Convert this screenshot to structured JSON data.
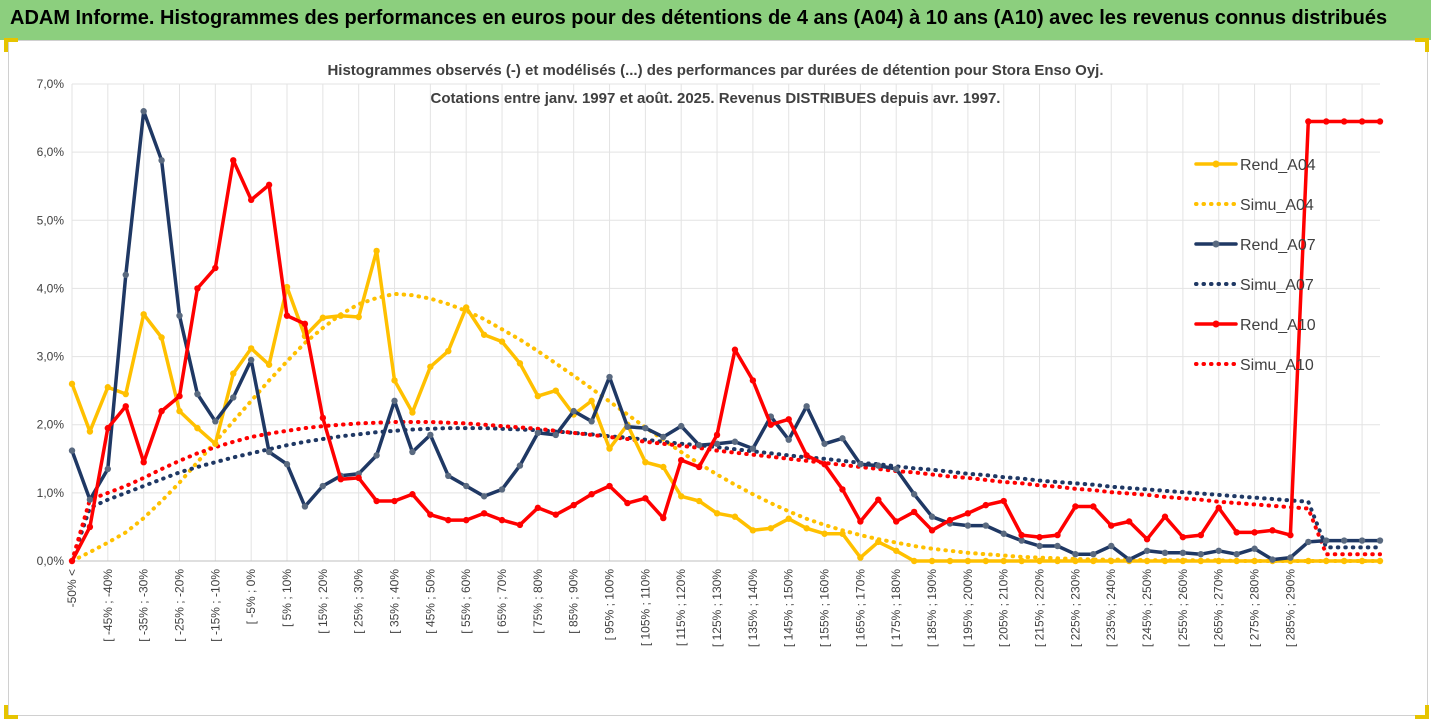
{
  "banner": {
    "title": "ADAM Informe. Histogrammes des performances en euros pour des détentions de 4 ans (A04) à 10 ans (A10) avec les revenus connus distribués"
  },
  "colors": {
    "banner_bg": "#8ccf7e",
    "frame_corner": "#e6c400",
    "a04": "#ffc000",
    "a07": "#1f3864",
    "a10": "#ff0000"
  },
  "chart_data": {
    "type": "line",
    "title": "Histogrammes observés (-) et modélisés (...) des performances par durées de détention pour Stora Enso Oyj.",
    "subtitle": "Cotations entre janv. 1997 et août. 2025. Revenus DISTRIBUES depuis avr.  1997.",
    "ylim": [
      0,
      7
    ],
    "y_tick_labels": [
      "0,0%",
      "1,0%",
      "2,0%",
      "3,0%",
      "4,0%",
      "5,0%",
      "6,0%",
      "7,0%"
    ],
    "grid": true,
    "legend_position": "right",
    "x_tick_labels": [
      "-50% <",
      "[ -45% ; -40%",
      "[ -35% ; -30%",
      "[ -25% ; -20%",
      "[ -15% ; -10%",
      "[ -5% ; 0%",
      "[ 5% ; 10%",
      "[ 15% ; 20%",
      "[ 25% ; 30%",
      "[ 35% ; 40%",
      "[ 45% ; 50%",
      "[ 55% ; 60%",
      "[ 65% ; 70%",
      "[ 75% ; 80%",
      "[ 85% ; 90%",
      "[ 95% ; 100%",
      "[ 105% ; 110%",
      "[ 115% ; 120%",
      "[ 125% ; 130%",
      "[ 135% ; 140%",
      "[ 145% ; 150%",
      "[ 155% ; 160%",
      "[ 165% ; 170%",
      "[ 175% ; 180%",
      "[ 185% ; 190%",
      "[ 195% ; 200%",
      "[ 205% ; 210%",
      "[ 215% ; 220%",
      "[ 225% ; 230%",
      "[ 235% ; 240%",
      "[ 245% ; 250%",
      "[ 255% ; 260%",
      "[ 265% ; 270%",
      "[ 275% ; 280%",
      "[ 285% ; 290%"
    ],
    "series": [
      {
        "name": "Rend_A04",
        "style": "solid",
        "color": "#ffc000",
        "values": [
          2.6,
          1.9,
          2.55,
          2.45,
          3.62,
          3.28,
          2.2,
          1.95,
          1.72,
          2.75,
          3.12,
          2.88,
          4.02,
          3.3,
          3.57,
          3.6,
          3.58,
          4.55,
          2.65,
          2.18,
          2.85,
          3.08,
          3.72,
          3.32,
          3.22,
          2.9,
          2.42,
          2.5,
          2.15,
          2.35,
          1.65,
          2.0,
          1.45,
          1.38,
          0.95,
          0.88,
          0.7,
          0.65,
          0.45,
          0.48,
          0.62,
          0.48,
          0.4,
          0.4,
          0.05,
          0.28,
          0.15,
          0,
          0,
          0,
          0,
          0,
          0,
          0,
          0,
          0,
          0,
          0,
          0,
          0,
          0,
          0,
          0,
          0,
          0,
          0,
          0,
          0,
          0,
          0,
          0,
          0,
          0,
          0
        ]
      },
      {
        "name": "Simu_A04",
        "style": "dotted",
        "color": "#ffc000",
        "values": [
          0,
          0.13,
          0.27,
          0.42,
          0.63,
          0.88,
          1.15,
          1.45,
          1.75,
          2.05,
          2.35,
          2.65,
          2.93,
          3.2,
          3.42,
          3.62,
          3.77,
          3.86,
          3.92,
          3.9,
          3.85,
          3.77,
          3.67,
          3.55,
          3.4,
          3.25,
          3.08,
          2.9,
          2.72,
          2.53,
          2.34,
          2.15,
          1.96,
          1.78,
          1.6,
          1.43,
          1.27,
          1.12,
          0.98,
          0.85,
          0.73,
          0.62,
          0.53,
          0.45,
          0.38,
          0.32,
          0.27,
          0.22,
          0.18,
          0.15,
          0.12,
          0.1,
          0.08,
          0.06,
          0.05,
          0.04,
          0.03,
          0.02,
          0.02,
          0.02,
          0.01,
          0.01,
          0.01,
          0.01,
          0.01,
          0,
          0,
          0,
          0,
          0,
          0,
          0,
          0,
          0
        ]
      },
      {
        "name": "Rend_A07",
        "style": "solid",
        "color": "#1f3864",
        "values": [
          1.62,
          0.9,
          1.35,
          4.2,
          6.6,
          5.88,
          3.6,
          2.45,
          2.05,
          2.4,
          2.95,
          1.6,
          1.42,
          0.8,
          1.1,
          1.25,
          1.28,
          1.55,
          2.35,
          1.6,
          1.85,
          1.25,
          1.1,
          0.95,
          1.05,
          1.4,
          1.88,
          1.85,
          2.2,
          2.05,
          2.7,
          1.97,
          1.95,
          1.82,
          1.98,
          1.7,
          1.72,
          1.75,
          1.65,
          2.12,
          1.78,
          2.27,
          1.72,
          1.8,
          1.42,
          1.4,
          1.35,
          0.98,
          0.65,
          0.55,
          0.52,
          0.52,
          0.4,
          0.3,
          0.22,
          0.22,
          0.1,
          0.1,
          0.22,
          0.02,
          0.15,
          0.12,
          0.12,
          0.1,
          0.15,
          0.1,
          0.18,
          0.02,
          0.05,
          0.28,
          0.3,
          0.3,
          0.3,
          0.3
        ]
      },
      {
        "name": "Simu_A07",
        "style": "dotted",
        "color": "#1f3864",
        "values": [
          0,
          0.78,
          0.9,
          1.0,
          1.1,
          1.2,
          1.3,
          1.38,
          1.45,
          1.52,
          1.58,
          1.64,
          1.7,
          1.75,
          1.79,
          1.83,
          1.86,
          1.89,
          1.91,
          1.93,
          1.94,
          1.95,
          1.95,
          1.95,
          1.94,
          1.93,
          1.92,
          1.9,
          1.88,
          1.86,
          1.83,
          1.81,
          1.78,
          1.75,
          1.72,
          1.7,
          1.67,
          1.64,
          1.61,
          1.58,
          1.55,
          1.52,
          1.5,
          1.47,
          1.44,
          1.42,
          1.39,
          1.36,
          1.34,
          1.31,
          1.28,
          1.26,
          1.23,
          1.21,
          1.18,
          1.16,
          1.14,
          1.12,
          1.09,
          1.07,
          1.05,
          1.03,
          1.01,
          0.99,
          0.97,
          0.95,
          0.93,
          0.91,
          0.89,
          0.87,
          0.2,
          0.2,
          0.2,
          0.2
        ]
      },
      {
        "name": "Rend_A10",
        "style": "solid",
        "color": "#ff0000",
        "values": [
          0,
          0.5,
          1.95,
          2.27,
          1.45,
          2.2,
          2.42,
          4.0,
          4.3,
          5.88,
          5.3,
          5.52,
          3.6,
          3.48,
          2.1,
          1.2,
          1.22,
          0.88,
          0.88,
          0.98,
          0.68,
          0.6,
          0.6,
          0.7,
          0.6,
          0.53,
          0.78,
          0.68,
          0.82,
          0.98,
          1.1,
          0.85,
          0.92,
          0.63,
          1.48,
          1.38,
          1.85,
          3.1,
          2.65,
          2.0,
          2.08,
          1.55,
          1.42,
          1.05,
          0.58,
          0.9,
          0.58,
          0.72,
          0.45,
          0.6,
          0.7,
          0.82,
          0.88,
          0.38,
          0.35,
          0.38,
          0.8,
          0.8,
          0.52,
          0.58,
          0.32,
          0.65,
          0.35,
          0.38,
          0.78,
          0.42,
          0.42,
          0.45,
          0.38,
          6.45,
          6.45,
          6.45,
          6.45,
          6.45
        ]
      },
      {
        "name": "Simu_A10",
        "style": "dotted",
        "color": "#ff0000",
        "values": [
          0,
          0.9,
          1.0,
          1.1,
          1.22,
          1.35,
          1.47,
          1.58,
          1.67,
          1.75,
          1.82,
          1.87,
          1.91,
          1.95,
          1.98,
          2.0,
          2.02,
          2.03,
          2.04,
          2.04,
          2.04,
          2.03,
          2.02,
          2.0,
          1.98,
          1.96,
          1.94,
          1.91,
          1.88,
          1.85,
          1.82,
          1.79,
          1.75,
          1.72,
          1.69,
          1.66,
          1.62,
          1.59,
          1.56,
          1.53,
          1.5,
          1.47,
          1.44,
          1.41,
          1.38,
          1.35,
          1.32,
          1.3,
          1.27,
          1.24,
          1.22,
          1.19,
          1.16,
          1.14,
          1.11,
          1.09,
          1.06,
          1.04,
          1.01,
          0.99,
          0.97,
          0.94,
          0.92,
          0.9,
          0.87,
          0.85,
          0.83,
          0.81,
          0.79,
          0.77,
          0.1,
          0.1,
          0.1,
          0.1
        ]
      }
    ]
  }
}
